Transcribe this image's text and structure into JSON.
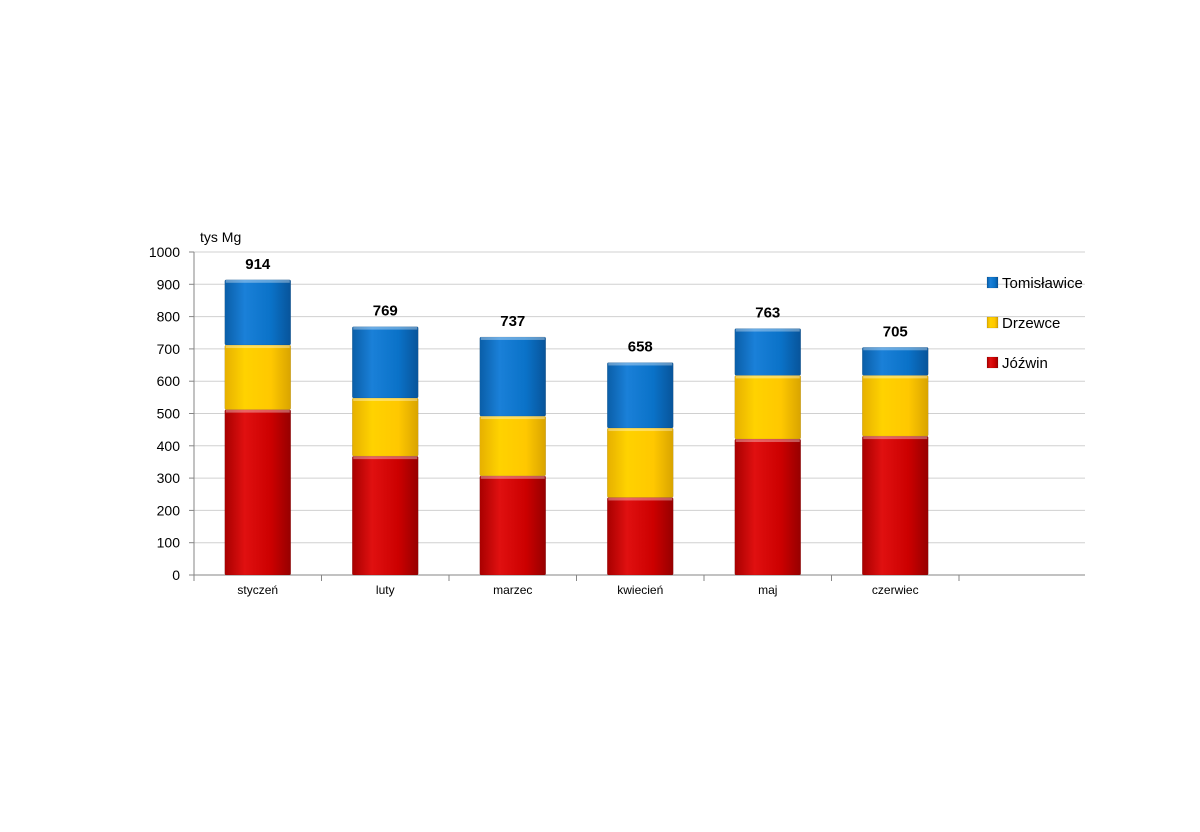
{
  "chart_data": {
    "type": "bar",
    "stacked": true,
    "title": "",
    "ylabel": "tys Mg",
    "xlabel": "",
    "ylim": [
      0,
      1000
    ],
    "yticks": [
      0,
      100,
      200,
      300,
      400,
      500,
      600,
      700,
      800,
      900,
      1000
    ],
    "grid": true,
    "legend_position": "right",
    "categories": [
      "styczeń",
      "luty",
      "marzec",
      "kwiecień",
      "maj",
      "czerwiec"
    ],
    "series": [
      {
        "name": "Jóźwin",
        "color": "#d40000",
        "values": [
          512,
          368,
          307,
          240,
          421,
          430
        ]
      },
      {
        "name": "Drzewce",
        "color": "#ffcc00",
        "values": [
          200,
          180,
          185,
          215,
          197,
          188
        ]
      },
      {
        "name": "Tomisławice",
        "color": "#0a72c8",
        "values": [
          202,
          221,
          245,
          203,
          145,
          87
        ]
      }
    ],
    "totals": [
      914,
      769,
      737,
      658,
      763,
      705
    ],
    "legend_order": [
      "Tomisławice",
      "Drzewce",
      "Jóźwin"
    ]
  }
}
